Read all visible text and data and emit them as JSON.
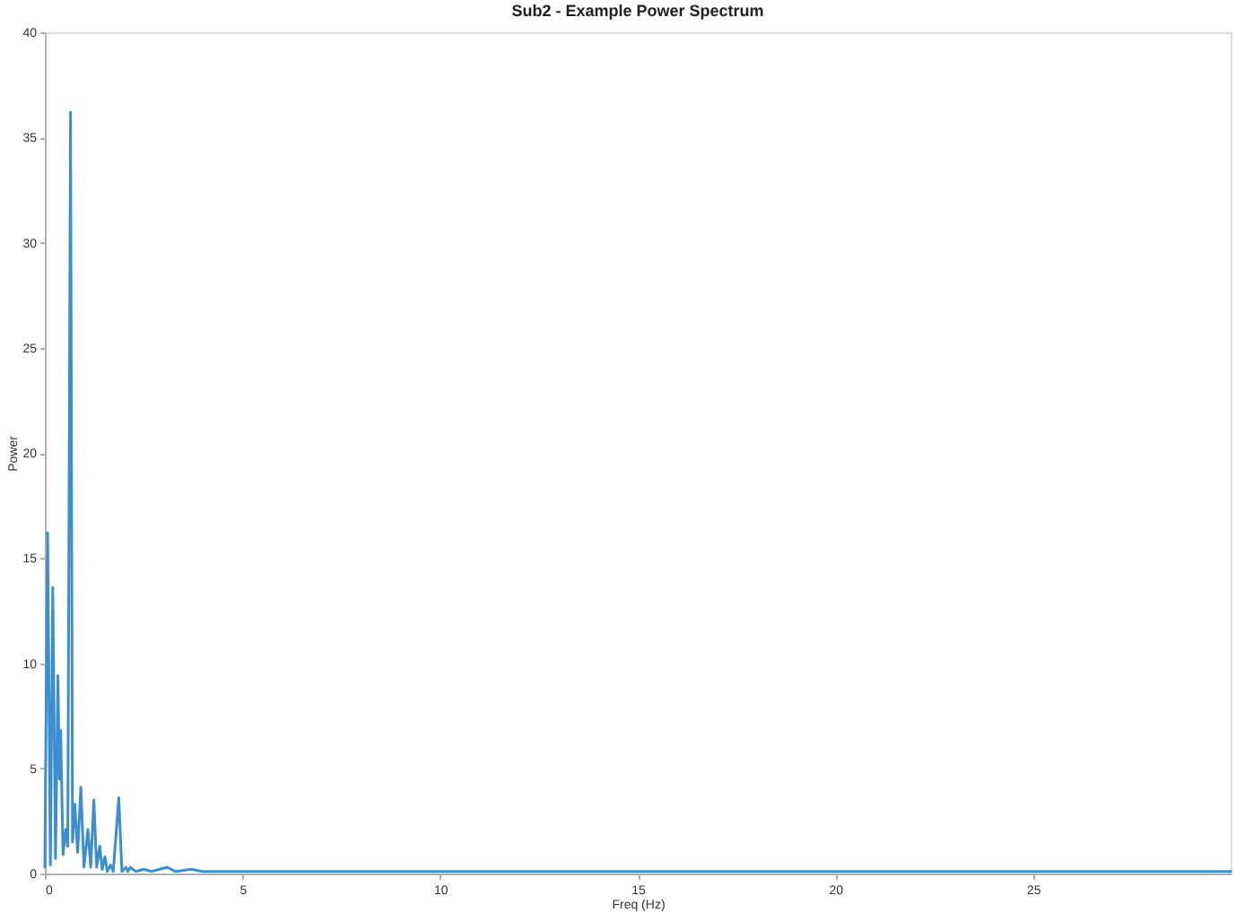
{
  "chart_data": {
    "type": "line",
    "title": "Sub2 - Example Power Spectrum",
    "xlabel": "Freq (Hz)",
    "ylabel": "Power",
    "x": [
      0.0,
      0.07,
      0.14,
      0.2,
      0.27,
      0.33,
      0.37,
      0.4,
      0.46,
      0.53,
      0.58,
      0.65,
      0.7,
      0.76,
      0.83,
      0.91,
      0.99,
      1.09,
      1.16,
      1.24,
      1.31,
      1.39,
      1.45,
      1.52,
      1.58,
      1.66,
      1.73,
      1.87,
      1.95,
      2.05,
      2.1,
      2.16,
      2.3,
      2.5,
      2.7,
      2.9,
      3.1,
      3.3,
      3.7,
      4.0,
      5,
      10,
      15,
      20,
      25,
      30
    ],
    "series": [
      {
        "color": "#3b8fd0",
        "values": [
          0.3,
          16.2,
          0.4,
          13.6,
          0.7,
          9.4,
          4.5,
          6.8,
          0.9,
          2.1,
          1.3,
          36.2,
          1.5,
          3.3,
          1.0,
          4.1,
          0.3,
          2.1,
          0.3,
          3.5,
          0.3,
          1.3,
          0.2,
          0.8,
          0.1,
          0.4,
          0.1,
          3.6,
          0.1,
          0.3,
          0.1,
          0.3,
          0.1,
          0.2,
          0.1,
          0.2,
          0.3,
          0.1,
          0.2,
          0.1,
          0.1,
          0.1,
          0.1,
          0.1,
          0.1,
          0.1
        ]
      }
    ],
    "xlim": [
      0,
      30
    ],
    "xticks": [
      0,
      5,
      10,
      15,
      20,
      25
    ],
    "ylim": [
      0,
      40
    ],
    "yticks": [
      0,
      5,
      10,
      15,
      20,
      25,
      30,
      35,
      40
    ],
    "grid": false,
    "legend": false,
    "line_style": "solid"
  }
}
